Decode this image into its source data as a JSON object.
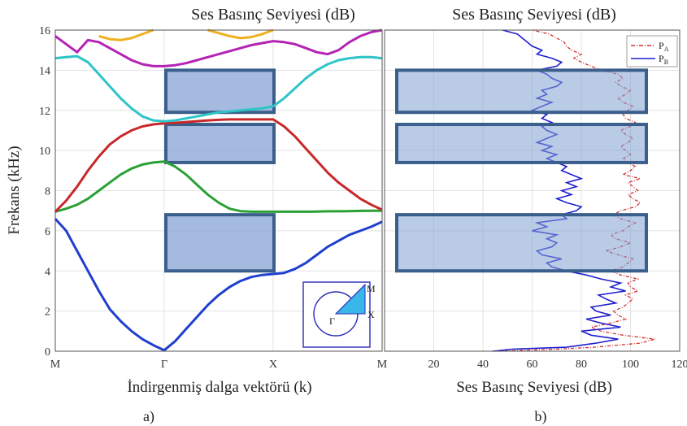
{
  "chart_data": [
    {
      "type": "line",
      "panel_label": "a)",
      "title": "Ses Basınç Seviyesi (dB)",
      "xlabel": "İndirgenmiş dalga vektörü (k)",
      "ylabel": "Frekans (kHz)",
      "ylim": [
        0,
        16
      ],
      "yticks": [
        "0",
        "2",
        "4",
        "6",
        "8",
        "10",
        "12",
        "14",
        "16"
      ],
      "xticks": [
        "M",
        "Γ",
        "X",
        "M"
      ],
      "grid": true,
      "x": [
        0,
        0.1,
        0.2,
        0.3,
        0.4,
        0.5,
        0.6,
        0.7,
        0.8,
        0.9,
        1.0,
        1.1,
        1.2,
        1.3,
        1.4,
        1.5,
        1.6,
        1.7,
        1.8,
        1.9,
        2.0,
        2.1,
        2.2,
        2.3,
        2.4,
        2.5,
        2.6,
        2.7,
        2.8,
        2.9,
        3.0
      ],
      "series": [
        {
          "color": "#1f3fd0",
          "values": [
            6.6,
            6.0,
            5.0,
            4.0,
            3.0,
            2.1,
            1.5,
            1.0,
            0.6,
            0.3,
            0.05,
            0.5,
            1.1,
            1.7,
            2.3,
            2.8,
            3.2,
            3.5,
            3.7,
            3.8,
            3.85,
            3.9,
            4.1,
            4.4,
            4.8,
            5.2,
            5.5,
            5.8,
            6.0,
            6.2,
            6.45
          ]
        },
        {
          "color": "#2aa035",
          "values": [
            6.95,
            7.1,
            7.3,
            7.6,
            8.0,
            8.4,
            8.8,
            9.1,
            9.3,
            9.4,
            9.45,
            9.2,
            8.8,
            8.3,
            7.8,
            7.4,
            7.1,
            6.98,
            6.95,
            6.95,
            6.95,
            6.95,
            6.95,
            6.95,
            6.96,
            6.97,
            6.97,
            6.98,
            6.99,
            7.0,
            7.0
          ]
        },
        {
          "color": "#c9282a",
          "values": [
            6.95,
            7.5,
            8.2,
            9.0,
            9.7,
            10.3,
            10.7,
            11.0,
            11.2,
            11.3,
            11.35,
            11.38,
            11.42,
            11.46,
            11.5,
            11.53,
            11.55,
            11.55,
            11.55,
            11.55,
            11.55,
            11.2,
            10.7,
            10.1,
            9.5,
            8.9,
            8.4,
            8.0,
            7.6,
            7.3,
            7.05
          ]
        },
        {
          "color": "#2ec4c8",
          "values": [
            14.6,
            14.65,
            14.7,
            14.4,
            13.8,
            13.2,
            12.6,
            12.1,
            11.7,
            11.5,
            11.45,
            11.5,
            11.6,
            11.7,
            11.8,
            11.9,
            11.95,
            12.0,
            12.05,
            12.1,
            12.2,
            12.6,
            13.1,
            13.6,
            14.0,
            14.3,
            14.5,
            14.6,
            14.65,
            14.65,
            14.6
          ]
        },
        {
          "color": "#b523b5",
          "values": [
            15.7,
            15.3,
            14.9,
            15.5,
            15.4,
            15.1,
            14.8,
            14.5,
            14.3,
            14.2,
            14.2,
            14.25,
            14.35,
            14.5,
            14.65,
            14.8,
            14.95,
            15.1,
            15.25,
            15.35,
            15.45,
            15.4,
            15.3,
            15.1,
            14.9,
            14.8,
            15.0,
            15.4,
            15.7,
            15.9,
            16.0
          ]
        },
        {
          "color": "#f0b020",
          "values": [
            null,
            null,
            null,
            null,
            15.7,
            15.55,
            15.5,
            15.6,
            15.8,
            16.0,
            null,
            null,
            null,
            null,
            16.0,
            15.85,
            15.7,
            15.6,
            15.65,
            15.8,
            16.0,
            null,
            null,
            null,
            null,
            null,
            null,
            null,
            null,
            null,
            null
          ]
        }
      ],
      "shaded_bands_khz": [
        [
          4,
          6.8
        ],
        [
          9.4,
          11.3
        ],
        [
          11.9,
          14
        ]
      ],
      "inset_labels": [
        "M",
        "X",
        "Γ"
      ]
    },
    {
      "type": "line",
      "panel_label": "b)",
      "title": "Ses Basınç Seviyesi (dB)",
      "xlabel": "Ses Basınç Seviyesi (dB)",
      "xlim": [
        0,
        120
      ],
      "xticks": [
        "20",
        "40",
        "60",
        "80",
        "100",
        "120"
      ],
      "ylim": [
        0,
        16
      ],
      "grid": true,
      "legend": {
        "placement": "top-right",
        "entries": [
          {
            "label": "P",
            "sub": "A",
            "color": "#d43030"
          },
          {
            "label": "P",
            "sub": "B",
            "color": "#1f1fd0"
          }
        ]
      },
      "y": [
        0,
        0.1,
        0.2,
        0.4,
        0.6,
        0.8,
        1.0,
        1.2,
        1.4,
        1.6,
        1.8,
        2.0,
        2.2,
        2.4,
        2.6,
        2.8,
        3.0,
        3.2,
        3.4,
        3.6,
        3.8,
        4.0,
        4.2,
        4.4,
        4.6,
        4.8,
        5.0,
        5.2,
        5.4,
        5.6,
        5.8,
        6.0,
        6.2,
        6.4,
        6.6,
        6.8,
        7.0,
        7.2,
        7.4,
        7.6,
        7.8,
        8.0,
        8.2,
        8.4,
        8.6,
        8.8,
        9.0,
        9.2,
        9.4,
        9.6,
        9.8,
        10.0,
        10.2,
        10.4,
        10.6,
        10.8,
        11.0,
        11.2,
        11.4,
        11.6,
        11.8,
        12.0,
        12.2,
        12.4,
        12.6,
        12.8,
        13.0,
        13.2,
        13.4,
        13.6,
        13.8,
        14.0,
        14.2,
        14.4,
        14.6,
        14.8,
        15.0,
        15.2,
        15.4,
        15.6,
        15.8,
        16.0
      ],
      "series": [
        {
          "name": "PA",
          "color": "#d43030",
          "values": [
            46,
            70,
            85,
            104,
            110,
            97,
            88,
            84,
            92,
            98,
            95,
            93,
            97,
            99,
            101,
            98,
            103,
            100,
            99,
            103,
            96,
            92,
            97,
            99,
            101,
            95,
            90,
            96,
            100,
            94,
            92,
            97,
            99,
            102,
            96,
            93,
            96,
            102,
            104,
            101,
            99,
            103,
            101,
            99,
            104,
            97,
            100,
            102,
            99,
            97,
            100,
            98,
            96,
            99,
            101,
            98,
            96,
            100,
            102,
            98,
            97,
            99,
            101,
            97,
            95,
            98,
            100,
            96,
            94,
            97,
            95,
            88,
            84,
            80,
            77,
            80,
            76,
            74,
            73,
            70,
            67,
            60
          ]
        },
        {
          "name": "PB",
          "color": "#1f1fd0",
          "values": [
            44,
            52,
            74,
            86,
            95,
            84,
            80,
            96,
            88,
            82,
            92,
            86,
            84,
            94,
            90,
            87,
            98,
            92,
            96,
            88,
            82,
            74,
            68,
            66,
            72,
            64,
            62,
            68,
            70,
            66,
            70,
            60,
            66,
            62,
            74,
            72,
            78,
            80,
            74,
            70,
            76,
            72,
            78,
            74,
            80,
            76,
            72,
            74,
            70,
            66,
            70,
            64,
            68,
            62,
            66,
            70,
            66,
            64,
            68,
            64,
            66,
            60,
            64,
            68,
            62,
            66,
            64,
            70,
            72,
            68,
            66,
            62,
            70,
            72,
            68,
            62,
            64,
            60,
            58,
            56,
            54,
            48
          ]
        }
      ],
      "shaded_bands_khz": [
        [
          4,
          6.8
        ],
        [
          9.4,
          11.3
        ],
        [
          11.9,
          14
        ]
      ]
    }
  ]
}
